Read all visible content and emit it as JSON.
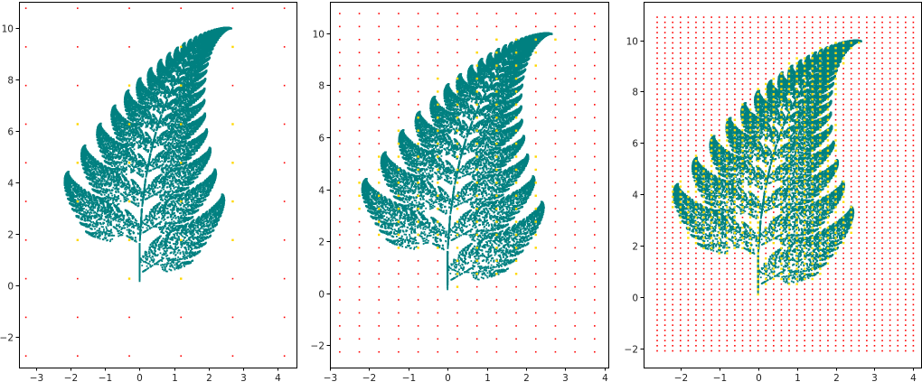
{
  "chart_data": [
    {
      "type": "scatter",
      "title": "",
      "xlabel": "",
      "ylabel": "",
      "xlim": [
        -3.5,
        4.55
      ],
      "ylim": [
        -3.2,
        11.0
      ],
      "xticks": [
        -3,
        -2,
        -1,
        0,
        1,
        2,
        3,
        4
      ],
      "yticks": [
        -2,
        0,
        2,
        4,
        6,
        8,
        10
      ],
      "grid": false,
      "grid_spacing": 1.5,
      "grid_x_start": -3.3,
      "grid_y_start": -2.75,
      "grid_x_end": 4.2,
      "grid_y_end": 10.75,
      "series": [
        {
          "name": "",
          "color": "#008080",
          "description": "Barnsley fern point cloud"
        },
        {
          "name": "",
          "color": "#ffd700",
          "description": "grid cells covered by fern"
        },
        {
          "name": "",
          "color": "#ff0000",
          "description": "grid cells not covered by fern"
        }
      ]
    },
    {
      "type": "scatter",
      "title": "",
      "xlabel": "",
      "ylabel": "",
      "xlim": [
        -3.0,
        4.1
      ],
      "ylim": [
        -2.85,
        11.2
      ],
      "xticks": [
        -3,
        -2,
        -1,
        0,
        1,
        2,
        3,
        4
      ],
      "yticks": [
        -2,
        0,
        2,
        4,
        6,
        8,
        10
      ],
      "grid": false,
      "grid_spacing": 0.5,
      "grid_x_start": -2.75,
      "grid_y_start": -2.25,
      "grid_x_end": 3.75,
      "grid_y_end": 10.75,
      "series": [
        {
          "name": "",
          "color": "#008080",
          "description": "Barnsley fern point cloud"
        },
        {
          "name": "",
          "color": "#ffd700",
          "description": "grid cells covered by fern"
        },
        {
          "name": "",
          "color": "#ff0000",
          "description": "grid cells not covered by fern"
        }
      ]
    },
    {
      "type": "scatter",
      "title": "",
      "xlabel": "",
      "ylabel": "",
      "xlim": [
        -2.95,
        4.2
      ],
      "ylim": [
        -2.75,
        11.5
      ],
      "xticks": [
        -2,
        -1,
        0,
        1,
        2,
        3,
        4
      ],
      "yticks": [
        -2,
        0,
        2,
        4,
        6,
        8,
        10
      ],
      "grid": false,
      "grid_spacing": 0.2,
      "grid_x_start": -2.6,
      "grid_y_start": -2.1,
      "grid_x_end": 4.0,
      "grid_y_end": 10.9,
      "series": [
        {
          "name": "",
          "color": "#008080",
          "description": "Barnsley fern point cloud"
        },
        {
          "name": "",
          "color": "#ffd700",
          "description": "grid cells covered by fern"
        },
        {
          "name": "",
          "color": "#ff0000",
          "description": "grid cells not covered by fern"
        }
      ]
    }
  ]
}
